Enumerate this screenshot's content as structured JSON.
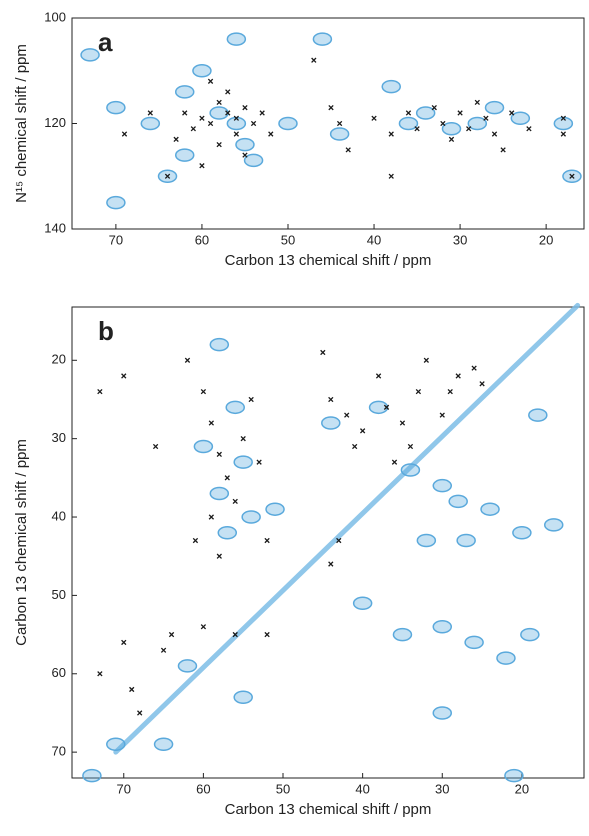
{
  "chart_data": [
    {
      "type": "scatter",
      "panel_label": "a",
      "x_label": "Carbon 13 chemical shift  /  ppm",
      "y_label": "N¹⁵ chemical shift  /  ppm",
      "xlim": [
        75.1,
        15.6
      ],
      "ylim": [
        100,
        140
      ],
      "xticks": [
        70,
        60,
        50,
        40,
        30,
        20
      ],
      "yticks": [
        100,
        120,
        140
      ],
      "series": [
        {
          "color": "#5aa9dc",
          "marker": "ellipse",
          "x": [
            73,
            70,
            62,
            60,
            58,
            56,
            55,
            54,
            62,
            64,
            66,
            50,
            46,
            44,
            38,
            36,
            34,
            31,
            28,
            26,
            18,
            17,
            70,
            56,
            23
          ],
          "y": [
            107,
            117,
            114,
            110,
            118,
            120,
            124,
            127,
            126,
            130,
            120,
            120,
            104,
            122,
            113,
            120,
            118,
            121,
            120,
            117,
            120,
            130,
            135,
            104,
            119
          ]
        },
        {
          "color": "#1a1a1a",
          "marker": "x",
          "x": [
            58,
            57,
            59,
            56,
            55,
            60,
            61,
            58,
            57,
            56,
            54,
            53,
            62,
            63,
            64,
            55,
            59,
            52,
            66,
            69,
            45,
            44,
            43,
            40,
            38,
            36,
            35,
            33,
            32,
            31,
            30,
            29,
            28,
            27,
            26,
            25,
            24,
            22,
            18,
            18,
            17,
            47,
            38,
            60
          ],
          "y": [
            116,
            118,
            120,
            122,
            117,
            119,
            121,
            124,
            114,
            119,
            120,
            118,
            118,
            123,
            130,
            126,
            112,
            122,
            118,
            122,
            117,
            120,
            125,
            119,
            122,
            118,
            121,
            117,
            120,
            123,
            118,
            121,
            116,
            119,
            122,
            125,
            118,
            121,
            119,
            122,
            130,
            108,
            130,
            128
          ]
        }
      ]
    },
    {
      "type": "scatter",
      "panel_label": "b",
      "x_label": "Carbon 13 chemical shift  /  ppm",
      "y_label": "Carbon 13 chemical shift  /  ppm",
      "xlim": [
        76.5,
        12.2
      ],
      "ylim": [
        13.2,
        73.3
      ],
      "xticks": [
        70,
        60,
        50,
        40,
        30,
        20
      ],
      "yticks": [
        20,
        30,
        40,
        50,
        60,
        70
      ],
      "series": [
        {
          "color": "#7cbde6",
          "marker": "line",
          "x": [
            71,
            13
          ],
          "y": [
            70,
            13
          ]
        },
        {
          "color": "#5aa9dc",
          "marker": "ellipse",
          "x": [
            58,
            56,
            55,
            58,
            57,
            60,
            54,
            51,
            44,
            38,
            34,
            30,
            28,
            27,
            32,
            24,
            20,
            18,
            35,
            30,
            26,
            22,
            19,
            40,
            62,
            55,
            71,
            74,
            65,
            30,
            21,
            16
          ],
          "y": [
            18,
            26,
            33,
            37,
            42,
            31,
            40,
            39,
            28,
            26,
            34,
            36,
            38,
            43,
            43,
            39,
            42,
            27,
            55,
            54,
            56,
            58,
            55,
            51,
            59,
            63,
            69,
            73,
            69,
            65,
            73,
            41
          ]
        },
        {
          "color": "#1a1a1a",
          "marker": "x",
          "x": [
            73,
            70,
            66,
            62,
            60,
            59,
            58,
            57,
            56,
            55,
            54,
            59,
            61,
            58,
            53,
            52,
            45,
            44,
            42,
            41,
            40,
            38,
            37,
            35,
            34,
            33,
            32,
            30,
            29,
            28,
            26,
            25,
            64,
            60,
            56,
            52,
            70,
            73,
            69,
            65,
            68,
            36,
            43,
            44
          ],
          "y": [
            24,
            22,
            31,
            20,
            24,
            28,
            32,
            35,
            38,
            30,
            25,
            40,
            43,
            45,
            33,
            43,
            19,
            25,
            27,
            31,
            29,
            22,
            26,
            28,
            31,
            24,
            20,
            27,
            24,
            22,
            21,
            23,
            55,
            54,
            55,
            55,
            56,
            60,
            62,
            57,
            65,
            33,
            43,
            46
          ]
        }
      ]
    }
  ]
}
